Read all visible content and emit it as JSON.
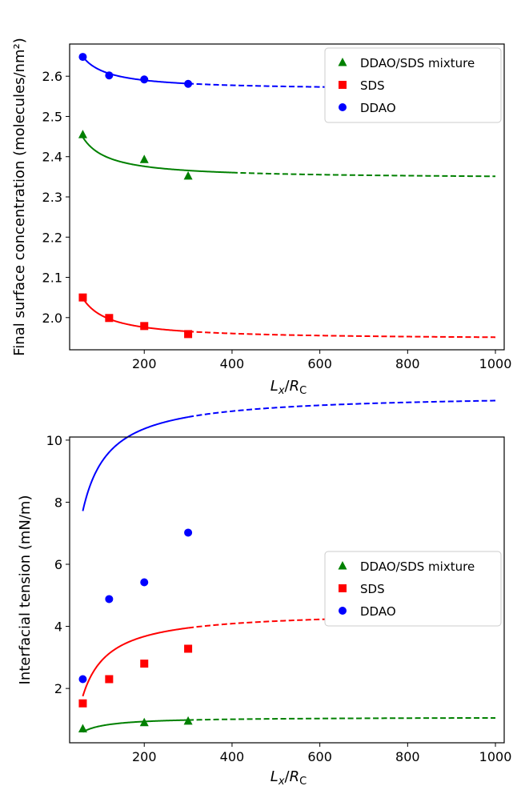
{
  "chart_data": [
    {
      "type": "scatter",
      "ylabel": "Final surface concentration (molecules/nm²)",
      "xlabel": {
        "main": "L",
        "sub1": "x",
        "slash": "/",
        "main2": "R",
        "sub2": "C"
      },
      "xlim": [
        30,
        1020
      ],
      "ylim": [
        1.92,
        2.68
      ],
      "xticks": [
        200,
        400,
        600,
        800,
        1000
      ],
      "yticks": [
        2.0,
        2.1,
        2.2,
        2.3,
        2.4,
        2.5,
        2.6
      ],
      "ytick_labels": [
        "2.0",
        "2.1",
        "2.2",
        "2.3",
        "2.4",
        "2.5",
        "2.6"
      ],
      "legend_position": "top-right",
      "series": [
        {
          "name": "DDAO/SDS mixture",
          "color": "#008000",
          "marker": "triangle",
          "points": [
            [
              60,
              2.455
            ],
            [
              200,
              2.393
            ],
            [
              300,
              2.352
            ]
          ],
          "fit": {
            "a": 2.345,
            "b": 6.2,
            "solid_until": 400
          }
        },
        {
          "name": "SDS",
          "color": "#ff0000",
          "marker": "square",
          "points": [
            [
              60,
              2.05
            ],
            [
              120,
              1.999
            ],
            [
              200,
              1.979
            ],
            [
              300,
              1.959
            ]
          ],
          "fit": {
            "a": 1.945,
            "b": 6.2,
            "solid_until": 300
          }
        },
        {
          "name": "DDAO",
          "color": "#0000ff",
          "marker": "circle",
          "points": [
            [
              60,
              2.648
            ],
            [
              120,
              2.602
            ],
            [
              200,
              2.592
            ],
            [
              300,
              2.581
            ]
          ],
          "fit": {
            "a": 2.565,
            "b": 5.0,
            "solid_until": 300
          }
        }
      ]
    },
    {
      "type": "scatter",
      "ylabel": "Interfacial tension (mN/m)",
      "xlabel": {
        "main": "L",
        "sub1": "x",
        "slash": "/",
        "main2": "R",
        "sub2": "C"
      },
      "xlim": [
        30,
        1020
      ],
      "ylim": [
        0.25,
        10.1
      ],
      "xticks": [
        200,
        400,
        600,
        800,
        1000
      ],
      "yticks": [
        2,
        4,
        6,
        8,
        10
      ],
      "ytick_labels": [
        "2",
        "4",
        "6",
        "8",
        "10"
      ],
      "legend_position": "center-right",
      "series": [
        {
          "name": "DDAO/SDS mixture",
          "color": "#008000",
          "marker": "triangle",
          "points": [
            [
              60,
              0.7
            ],
            [
              200,
              0.9
            ],
            [
              300,
              0.95
            ]
          ],
          "fit": {
            "a": 1.08,
            "b": -29,
            "solid_until": 300
          }
        },
        {
          "name": "SDS",
          "color": "#ff0000",
          "marker": "square",
          "points": [
            [
              60,
              1.52
            ],
            [
              120,
              2.3
            ],
            [
              200,
              2.8
            ],
            [
              300,
              3.28
            ]
          ],
          "fit": {
            "a": 4.5,
            "b": -165,
            "solid_until": 300
          }
        },
        {
          "name": "DDAO",
          "color": "#0000ff",
          "marker": "circle",
          "points": [
            [
              60,
              2.3
            ],
            [
              120,
              4.88
            ],
            [
              200,
              5.42
            ],
            [
              300,
              7.02
            ]
          ],
          "fit": {
            "a": 11.5,
            "b": -227,
            "solid_until": 300
          }
        }
      ]
    }
  ]
}
